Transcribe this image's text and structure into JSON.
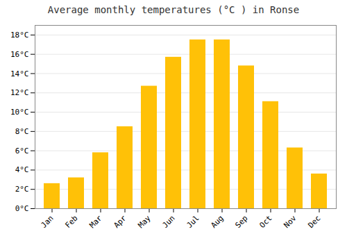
{
  "chart_data": {
    "type": "bar",
    "title": "Average monthly temperatures (°C ) in Ronse",
    "categories": [
      "Jan",
      "Feb",
      "Mar",
      "Apr",
      "May",
      "Jun",
      "Jul",
      "Aug",
      "Sep",
      "Oct",
      "Nov",
      "Dec"
    ],
    "values": [
      2.6,
      3.2,
      5.8,
      8.5,
      12.7,
      15.7,
      17.5,
      17.5,
      14.8,
      11.1,
      6.3,
      3.6
    ],
    "color": "#FFC107",
    "ylim": [
      0,
      19
    ],
    "yticks": [
      {
        "value": 0,
        "label": "0°C"
      },
      {
        "value": 2,
        "label": "2°C"
      },
      {
        "value": 4,
        "label": "4°C"
      },
      {
        "value": 6,
        "label": "6°C"
      },
      {
        "value": 8,
        "label": "8°C"
      },
      {
        "value": 10,
        "label": "10°C"
      },
      {
        "value": 12,
        "label": "12°C"
      },
      {
        "value": 14,
        "label": "14°C"
      },
      {
        "value": 16,
        "label": "16°C"
      },
      {
        "value": 18,
        "label": "18°C"
      }
    ],
    "grid": true
  }
}
